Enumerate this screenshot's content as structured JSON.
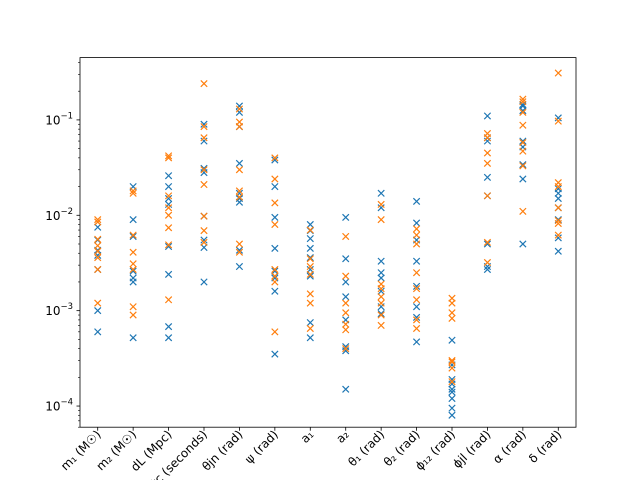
{
  "chart_data": {
    "type": "scatter",
    "yscale": "log",
    "ylim": [
      6e-05,
      0.45
    ],
    "grid": false,
    "legend": "none",
    "marker": "x",
    "ytick_labels": [
      {
        "value": 0.0001,
        "base": "10",
        "exp": "−4"
      },
      {
        "value": 0.001,
        "base": "10",
        "exp": "−3"
      },
      {
        "value": 0.01,
        "base": "10",
        "exp": "−2"
      },
      {
        "value": 0.1,
        "base": "10",
        "exp": "−1"
      }
    ],
    "categories": [
      "m₁ (M☉)",
      "m₂ (M☉)",
      "dL (Mpc)",
      "tc (seconds)",
      "θjn (rad)",
      "ψ (rad)",
      "a₁",
      "a₂",
      "θ₁ (rad)",
      "θ₂ (rad)",
      "ϕ₁₂ (rad)",
      "ϕjl (rad)",
      "α (rad)",
      "δ (rad)"
    ],
    "series": [
      {
        "color": "#1f77b4",
        "values": [
          [
            0.0006,
            0.001,
            0.0027,
            0.0038,
            0.0043,
            0.0055,
            0.0075
          ],
          [
            0.00052,
            0.002,
            0.0022,
            0.0026,
            0.006,
            0.009,
            0.02
          ],
          [
            0.00052,
            0.00068,
            0.0024,
            0.0047,
            0.013,
            0.015,
            0.02,
            0.026
          ],
          [
            0.002,
            0.0046,
            0.0055,
            0.0098,
            0.028,
            0.031,
            0.06,
            0.09
          ],
          [
            0.0029,
            0.0043,
            0.0137,
            0.015,
            0.017,
            0.035,
            0.085,
            0.12,
            0.14
          ],
          [
            0.00035,
            0.0016,
            0.0022,
            0.0026,
            0.0045,
            0.0095,
            0.02,
            0.038
          ],
          [
            0.00052,
            0.00075,
            0.0023,
            0.0027,
            0.0036,
            0.0045,
            0.0057,
            0.0069,
            0.008
          ],
          [
            0.00015,
            0.00038,
            0.00042,
            0.0008,
            0.0014,
            0.002,
            0.0035,
            0.0095
          ],
          [
            0.00093,
            0.0011,
            0.0016,
            0.0022,
            0.0025,
            0.0033,
            0.012,
            0.017
          ],
          [
            0.00047,
            0.00085,
            0.0011,
            0.0018,
            0.0033,
            0.0055,
            0.0083,
            0.014
          ],
          [
            8e-05,
            9.5e-05,
            0.00012,
            0.00014,
            0.00015,
            0.00017,
            0.00019,
            0.00027,
            0.00049
          ],
          [
            0.0027,
            0.0029,
            0.005,
            0.016,
            0.025,
            0.06,
            0.065,
            0.11
          ],
          [
            0.005,
            0.024,
            0.034,
            0.052,
            0.06,
            0.125,
            0.14,
            0.145
          ],
          [
            0.0042,
            0.0058,
            0.009,
            0.012,
            0.015,
            0.017,
            0.019,
            0.105
          ]
        ]
      },
      {
        "color": "#ff7f0e",
        "values": [
          [
            0.0012,
            0.0027,
            0.0036,
            0.0042,
            0.0048,
            0.0056,
            0.0085,
            0.009
          ],
          [
            0.0009,
            0.0011,
            0.0027,
            0.0031,
            0.0041,
            0.0062,
            0.017,
            0.018
          ],
          [
            0.0013,
            0.0049,
            0.0074,
            0.01,
            0.012,
            0.016,
            0.04,
            0.042
          ],
          [
            0.0052,
            0.0069,
            0.0098,
            0.021,
            0.03,
            0.065,
            0.085,
            0.24
          ],
          [
            0.0041,
            0.005,
            0.0155,
            0.018,
            0.03,
            0.085,
            0.095,
            0.13
          ],
          [
            0.0006,
            0.002,
            0.0023,
            0.0027,
            0.008,
            0.0135,
            0.024,
            0.04
          ],
          [
            0.00065,
            0.0012,
            0.0015,
            0.0024,
            0.0029,
            0.0035,
            0.007
          ],
          [
            0.0004,
            0.00063,
            0.00072,
            0.00095,
            0.0012,
            0.0023,
            0.006
          ],
          [
            0.0007,
            0.0009,
            0.0012,
            0.0014,
            0.0017,
            0.0019,
            0.009,
            0.013
          ],
          [
            0.00065,
            0.0008,
            0.0013,
            0.0017,
            0.0025,
            0.005,
            0.0062,
            0.0072
          ],
          [
            0.00018,
            0.00025,
            0.00029,
            0.0003,
            0.00083,
            0.00095,
            0.0012,
            0.00135
          ],
          [
            0.0032,
            0.0052,
            0.016,
            0.035,
            0.045,
            0.065,
            0.072
          ],
          [
            0.011,
            0.033,
            0.047,
            0.058,
            0.088,
            0.12,
            0.155,
            0.165
          ],
          [
            0.0062,
            0.0082,
            0.0088,
            0.012,
            0.02,
            0.022,
            0.097,
            0.31
          ]
        ]
      }
    ]
  }
}
